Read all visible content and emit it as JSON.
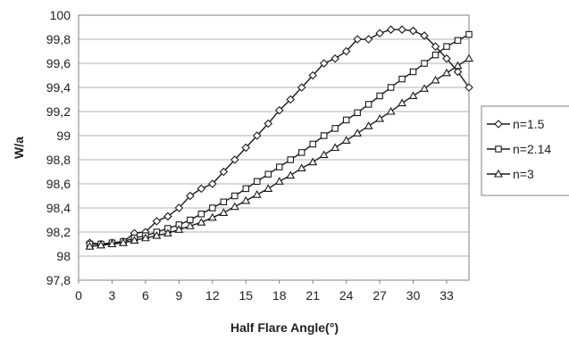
{
  "chart_data": {
    "type": "line",
    "title": "",
    "xlabel": "Half Flare Angle(°)",
    "ylabel": "W/a",
    "xlim": [
      0,
      35
    ],
    "ylim": [
      97.8,
      100
    ],
    "xticks": [
      0,
      3,
      6,
      9,
      12,
      15,
      18,
      21,
      24,
      27,
      30,
      33
    ],
    "xtick_labels": [
      "0",
      "3",
      "6",
      "9",
      "12",
      "15",
      "18",
      "21",
      "24",
      "27",
      "30",
      "33"
    ],
    "yticks": [
      97.8,
      98,
      98.2,
      98.4,
      98.6,
      98.8,
      99,
      99.2,
      99.4,
      99.6,
      99.8,
      100
    ],
    "ytick_labels": [
      "97,8",
      "98",
      "98,2",
      "98,4",
      "98,6",
      "98,8",
      "99",
      "99,2",
      "99,4",
      "99,6",
      "99,8",
      "100"
    ],
    "grid": "horizontal",
    "legend_position": "right",
    "series": [
      {
        "name": "n=1.5",
        "marker": "diamond",
        "x": [
          1,
          2,
          3,
          4,
          5,
          6,
          7,
          8,
          9,
          10,
          11,
          12,
          13,
          14,
          15,
          16,
          17,
          18,
          19,
          20,
          21,
          22,
          23,
          24,
          25,
          26,
          27,
          28,
          29,
          30,
          31,
          32,
          33,
          34,
          35
        ],
        "values": [
          98.11,
          98.1,
          98.11,
          98.12,
          98.19,
          98.2,
          98.29,
          98.33,
          98.4,
          98.5,
          98.56,
          98.6,
          98.7,
          98.8,
          98.9,
          99.0,
          99.1,
          99.21,
          99.3,
          99.4,
          99.5,
          99.6,
          99.64,
          99.7,
          99.8,
          99.8,
          99.85,
          99.88,
          99.88,
          99.87,
          99.83,
          99.74,
          99.64,
          99.53,
          99.4
        ]
      },
      {
        "name": "n=2.14",
        "marker": "square",
        "x": [
          1,
          2,
          3,
          4,
          5,
          6,
          7,
          8,
          9,
          10,
          11,
          12,
          13,
          14,
          15,
          16,
          17,
          18,
          19,
          20,
          21,
          22,
          23,
          24,
          25,
          26,
          27,
          28,
          29,
          30,
          31,
          32,
          33,
          34,
          35
        ],
        "values": [
          98.1,
          98.1,
          98.11,
          98.12,
          98.15,
          98.17,
          98.2,
          98.23,
          98.26,
          98.3,
          98.35,
          98.4,
          98.45,
          98.5,
          98.56,
          98.62,
          98.68,
          98.74,
          98.8,
          98.86,
          98.93,
          99.0,
          99.06,
          99.13,
          99.19,
          99.26,
          99.33,
          99.4,
          99.47,
          99.53,
          99.6,
          99.67,
          99.74,
          99.79,
          99.84
        ]
      },
      {
        "name": "n=3",
        "marker": "triangle",
        "x": [
          1,
          2,
          3,
          4,
          5,
          6,
          7,
          8,
          9,
          10,
          11,
          12,
          13,
          14,
          15,
          16,
          17,
          18,
          19,
          20,
          21,
          22,
          23,
          24,
          25,
          26,
          27,
          28,
          29,
          30,
          31,
          32,
          33,
          34,
          35
        ],
        "values": [
          98.08,
          98.09,
          98.1,
          98.11,
          98.13,
          98.15,
          98.17,
          98.19,
          98.22,
          98.25,
          98.28,
          98.32,
          98.36,
          98.41,
          98.46,
          98.51,
          98.56,
          98.62,
          98.67,
          98.73,
          98.78,
          98.84,
          98.9,
          98.96,
          99.02,
          99.08,
          99.14,
          99.2,
          99.27,
          99.33,
          99.39,
          99.46,
          99.52,
          99.58,
          99.64
        ]
      }
    ]
  },
  "colors": {
    "line": "#1a1a1a",
    "marker_fill": "#ffffff",
    "grid": "#b0b0b0",
    "plot_border": "#808080",
    "background": "#ffffff"
  }
}
